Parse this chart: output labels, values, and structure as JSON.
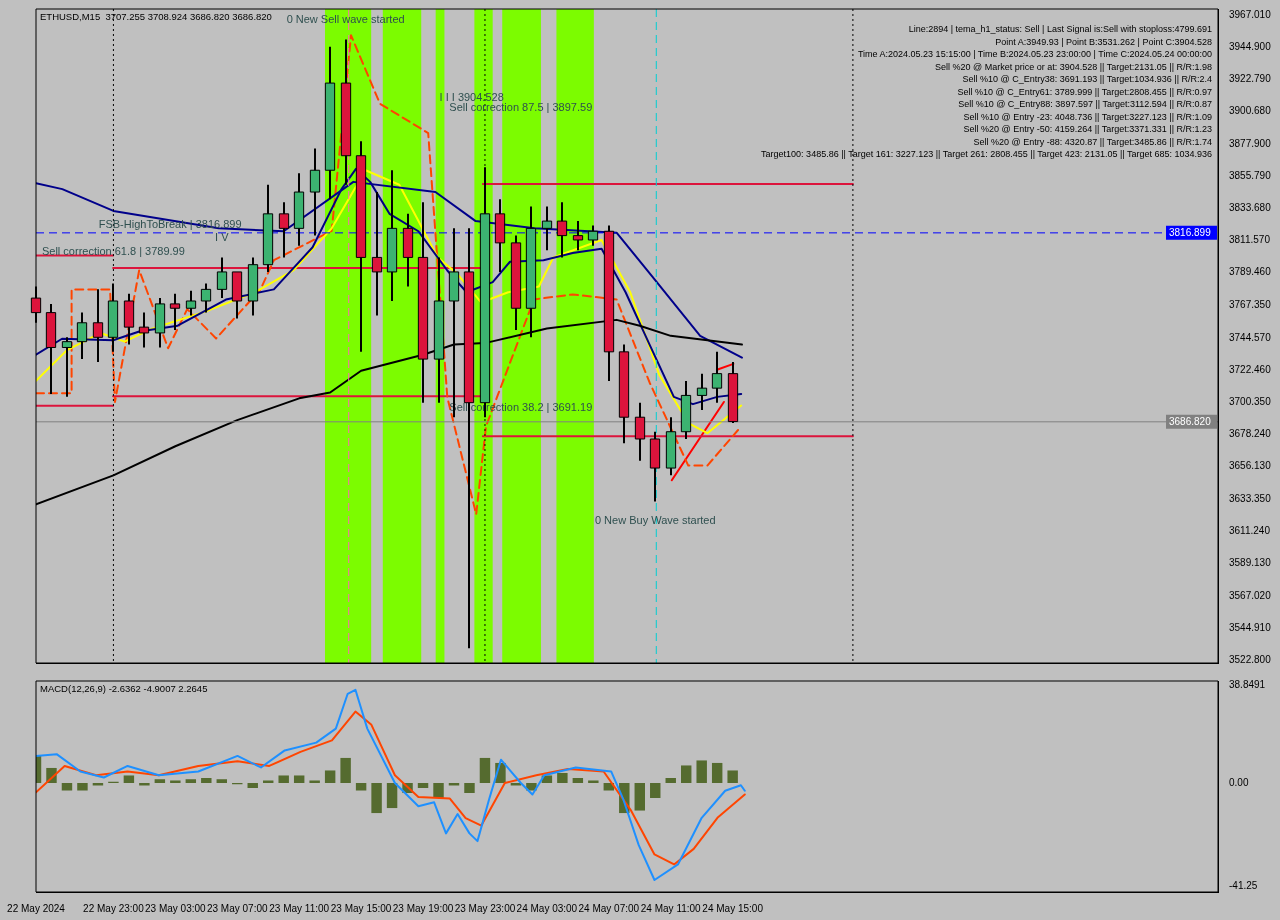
{
  "chart_data": [
    {
      "type": "candlestick",
      "title": "ETHUSD,M15  3707.255 3708.924 3686.820 3686.820",
      "annotations": [
        "Line:2894 | tema_h1_status: Sell | Last Signal is:Sell with stoploss:4799.691",
        "Point A:3949.93 | Point B:3531.262 | Point C:3904.528",
        "Time A:2024.05.23 15:15:00 | Time B:2024.05.23 23:00:00 | Time C:2024.05.24 00:00:00",
        "Sell %20 @ Market price or at: 3904.528 || Target:2131.05 || R/R:1.98",
        "Sell %10 @ C_Entry38: 3691.193 || Target:1034.936 || R/R:2.4",
        "Sell %10 @ C_Entry61: 3789.999 || Target:2808.455 || R/R:0.97",
        "Sell %10 @ C_Entry88: 3897.597 || Target:3112.594 || R/R:0.87",
        "Sell %10 @ Entry -23: 4048.736 || Target:3227.123 || R/R:1.09",
        "Sell %20 @ Entry -50: 4159.264 || Target:3371.331 || R/R:1.23",
        "Sell %20 @ Entry -88: 4320.87 || Target:3485.86 || R/R:1.74",
        "Target100: 3485.86 || Target 161: 3227.123 || Target 261: 2808.455 || Target 423: 2131.05 || Target 685: 1034.936",
        {
          "text": "0 New Sell wave started",
          "x": "2024-05-23T14:00",
          "y": 3950
        },
        {
          "text": "I I I 3904.528",
          "x": "2024-05-23T20:04",
          "y": 3904.528
        },
        {
          "text": "Sell correction 87.5 | 3897.59",
          "x": "2024-05-23T20:42",
          "y": 3897.59
        },
        {
          "text": "Sell correction 61.8 | 3789.99",
          "x": "2024-05-22T23:00",
          "y": 3789.99
        },
        {
          "text": "Sell correction 38.2 | 3691.19",
          "x": "2024-05-23T20:42",
          "y": 3691.19
        },
        {
          "text": "0 New Buy Wave started",
          "x": "2024-05-24T10:00",
          "y": 3632
        },
        {
          "text": "I V",
          "x": "2024-05-23T06:00",
          "y": 3800
        },
        {
          "text": "FSB-HighToBreak | 3816.899",
          "x": "2024-05-22T22:03",
          "y": 3816.899
        }
      ],
      "x": [
        "2024-05-22T18:00",
        "2024-05-22T19:00",
        "2024-05-22T20:00",
        "2024-05-22T21:00",
        "2024-05-22T22:00",
        "2024-05-22T23:00",
        "2024-05-23T00:00",
        "2024-05-23T01:00",
        "2024-05-23T02:00",
        "2024-05-23T03:00",
        "2024-05-23T04:00",
        "2024-05-23T05:00",
        "2024-05-23T06:00",
        "2024-05-23T07:00",
        "2024-05-23T08:00",
        "2024-05-23T09:00",
        "2024-05-23T10:00",
        "2024-05-23T11:00",
        "2024-05-23T12:00",
        "2024-05-23T13:00",
        "2024-05-23T14:00",
        "2024-05-23T15:00",
        "2024-05-23T16:00",
        "2024-05-23T17:00",
        "2024-05-23T18:00",
        "2024-05-23T19:00",
        "2024-05-23T20:00",
        "2024-05-23T21:00",
        "2024-05-23T22:00",
        "2024-05-23T23:00",
        "2024-05-24T00:00",
        "2024-05-24T01:00",
        "2024-05-24T02:00",
        "2024-05-24T03:00",
        "2024-05-24T04:00",
        "2024-05-24T05:00",
        "2024-05-24T06:00",
        "2024-05-24T07:00",
        "2024-05-24T08:00",
        "2024-05-24T09:00",
        "2024-05-24T10:00",
        "2024-05-24T11:00",
        "2024-05-24T12:00",
        "2024-05-24T13:00",
        "2024-05-24T14:00",
        "2024-05-24T15:00"
      ],
      "ohlc": [
        [
          3772,
          3780,
          3755,
          3762
        ],
        [
          3762,
          3768,
          3706,
          3738
        ],
        [
          3738,
          3745,
          3704,
          3742
        ],
        [
          3742,
          3762,
          3730,
          3755
        ],
        [
          3755,
          3778,
          3728,
          3745
        ],
        [
          3745,
          3782,
          3735,
          3770
        ],
        [
          3770,
          3775,
          3740,
          3752
        ],
        [
          3752,
          3762,
          3738,
          3748
        ],
        [
          3748,
          3772,
          3738,
          3768
        ],
        [
          3768,
          3775,
          3750,
          3765
        ],
        [
          3765,
          3777,
          3760,
          3770
        ],
        [
          3770,
          3782,
          3762,
          3778
        ],
        [
          3778,
          3800,
          3772,
          3790
        ],
        [
          3790,
          3790,
          3758,
          3770
        ],
        [
          3770,
          3800,
          3760,
          3795
        ],
        [
          3795,
          3850,
          3790,
          3830
        ],
        [
          3830,
          3838,
          3800,
          3820
        ],
        [
          3820,
          3858,
          3808,
          3845
        ],
        [
          3845,
          3875,
          3815,
          3860
        ],
        [
          3860,
          3945,
          3840,
          3920
        ],
        [
          3920,
          3950,
          3850,
          3870
        ],
        [
          3870,
          3880,
          3735,
          3800
        ],
        [
          3800,
          3845,
          3760,
          3790
        ],
        [
          3790,
          3860,
          3770,
          3820
        ],
        [
          3820,
          3830,
          3780,
          3800
        ],
        [
          3800,
          3838,
          3700,
          3730
        ],
        [
          3730,
          3800,
          3700,
          3770
        ],
        [
          3770,
          3820,
          3690,
          3790
        ],
        [
          3790,
          3820,
          3531,
          3700
        ],
        [
          3700,
          3862,
          3690,
          3830
        ],
        [
          3830,
          3840,
          3790,
          3810
        ],
        [
          3810,
          3815,
          3750,
          3765
        ],
        [
          3765,
          3835,
          3745,
          3820
        ],
        [
          3820,
          3835,
          3805,
          3825
        ],
        [
          3825,
          3838,
          3800,
          3815
        ],
        [
          3815,
          3825,
          3805,
          3812
        ],
        [
          3812,
          3822,
          3808,
          3818
        ],
        [
          3818,
          3822,
          3715,
          3735
        ],
        [
          3735,
          3740,
          3672,
          3690
        ],
        [
          3690,
          3700,
          3660,
          3675
        ],
        [
          3675,
          3680,
          3632,
          3655
        ],
        [
          3655,
          3690,
          3650,
          3680
        ],
        [
          3680,
          3715,
          3675,
          3705
        ],
        [
          3705,
          3720,
          3695,
          3710
        ],
        [
          3710,
          3735,
          3700,
          3720
        ],
        [
          3720,
          3728,
          3686,
          3687
        ]
      ],
      "series": [
        {
          "type": "line",
          "color": "#000000",
          "x": [
            "2024-05-22T18:00",
            "2024-05-22T23:00",
            "2024-05-23T03:00",
            "2024-05-23T07:00",
            "2024-05-23T11:00",
            "2024-05-23T13:00",
            "2024-05-23T15:00",
            "2024-05-23T19:00",
            "2024-05-23T21:00",
            "2024-05-23T23:00",
            "2024-05-24T03:00",
            "2024-05-24T07:30",
            "2024-05-24T09:00",
            "2024-05-24T11:00",
            "2024-05-24T15:36"
          ],
          "values": [
            3630,
            3650,
            3670,
            3688,
            3703,
            3707,
            3722,
            3733,
            3740,
            3741,
            3751,
            3757,
            3753,
            3746,
            3740
          ]
        },
        {
          "type": "line",
          "color": "#00008b",
          "x": [
            "2024-05-22T18:00",
            "2024-05-22T19:42",
            "2024-05-22T23:00",
            "2024-05-23T05:48",
            "2024-05-23T10:00",
            "2024-05-23T14:30",
            "2024-05-23T19:48",
            "2024-05-23T22:24",
            "2024-05-24T02:12",
            "2024-05-24T07:30",
            "2024-05-24T09:48",
            "2024-05-24T12:54",
            "2024-05-24T15:36"
          ],
          "values": [
            3851,
            3847,
            3832,
            3820,
            3818,
            3852,
            3845,
            3825,
            3820,
            3817,
            3787,
            3746,
            3731
          ]
        },
        {
          "type": "line",
          "color": "#000080",
          "x": [
            "2024-05-22T18:00",
            "2024-05-22T19:41",
            "2024-05-22T22:59",
            "2024-05-23T00:40",
            "2024-05-23T03:09",
            "2024-05-23T06:16",
            "2024-05-23T09:22",
            "2024-05-23T11:52",
            "2024-05-23T13:44",
            "2024-05-23T14:40",
            "2024-05-23T15:35",
            "2024-05-23T16:50",
            "2024-05-23T18:42",
            "2024-05-23T20:34",
            "2024-05-23T21:49",
            "2024-05-23T23:30",
            "2024-05-24T00:37",
            "2024-05-24T02:47",
            "2024-05-24T04:40",
            "2024-05-24T06:32",
            "2024-05-24T08:05",
            "2024-05-24T09:38",
            "2024-05-24T11:12",
            "2024-05-24T12:26",
            "2024-05-24T14:00",
            "2024-05-24T15:33"
          ],
          "values": [
            3733,
            3744,
            3743,
            3749,
            3753,
            3771,
            3778,
            3807,
            3847,
            3861,
            3852,
            3830,
            3818,
            3791,
            3776,
            3783,
            3797,
            3798,
            3803,
            3806,
            3776,
            3740,
            3704,
            3699,
            3704,
            3706
          ]
        },
        {
          "type": "line",
          "color": "#ffff00",
          "x": [
            "2024-05-22T18:00",
            "2024-05-22T19:59",
            "2024-05-22T22:10",
            "2024-05-22T23:43",
            "2024-05-23T01:30",
            "2024-05-23T05:01",
            "2024-05-23T08:08",
            "2024-05-23T10:37",
            "2024-05-23T13:06",
            "2024-05-23T15:17",
            "2024-05-23T17:28",
            "2024-05-23T19:57",
            "2024-05-23T21:11",
            "2024-05-23T22:45",
            "2024-05-24T00:30",
            "2024-05-24T02:29",
            "2024-05-24T03:25",
            "2024-05-24T06:32",
            "2024-05-24T08:23",
            "2024-05-24T10:16",
            "2024-05-24T12:08",
            "2024-05-24T13:22",
            "2024-05-24T15:33"
          ],
          "values": [
            3715,
            3736,
            3748,
            3742,
            3751,
            3763,
            3776,
            3791,
            3820,
            3860,
            3850,
            3800,
            3789,
            3769,
            3776,
            3780,
            3800,
            3812,
            3776,
            3719,
            3686,
            3679,
            3698
          ]
        },
        {
          "type": "line",
          "color": "#ff4500",
          "line_style": "dashed",
          "x": [
            "2024-05-22T18:00",
            "2024-05-22T20:18",
            "2024-05-22T20:18",
            "2024-05-22T22:47",
            "2024-05-22T23:06",
            "2024-05-23T00:40",
            "2024-05-23T02:32",
            "2024-05-23T03:46",
            "2024-05-23T05:38",
            "2024-05-23T08:30",
            "2024-05-23T09:22",
            "2024-05-23T13:06",
            "2024-05-23T14:21",
            "2024-05-23T16:13",
            "2024-05-23T19:20",
            "2024-05-23T20:34",
            "2024-05-23T22:26",
            "2024-05-23T23:04",
            "2024-05-24T02:10",
            "2024-05-24T04:40",
            "2024-05-24T07:30",
            "2024-05-24T09:38",
            "2024-05-24T12:08",
            "2024-05-24T13:22",
            "2024-05-24T15:33"
          ],
          "values": [
            3706.5,
            3706.5,
            3777.9,
            3777.9,
            3700.5,
            3791.3,
            3737.5,
            3764.4,
            3744.2,
            3777.9,
            3798.1,
            3818.3,
            3952.9,
            3905.8,
            3885.6,
            3703.8,
            3623.1,
            3683.7,
            3771.1,
            3774.5,
            3771.1,
            3713.9,
            3656.7,
            3656.7,
            3683.7
          ]
        },
        {
          "type": "line",
          "color": "#dc143c",
          "x": [
            "2024-05-22T18:00",
            "2024-05-22T22:59"
          ],
          "values": [
            3801.4,
            3801.4
          ]
        },
        {
          "type": "line",
          "color": "#dc143c",
          "x": [
            "2024-05-22T22:59",
            "2024-05-23T22:52"
          ],
          "values": [
            3792.7,
            3792.7
          ]
        },
        {
          "type": "line",
          "color": "#dc143c",
          "x": [
            "2024-05-22T22:59",
            "2024-05-23T22:52"
          ],
          "values": [
            3704.5,
            3704.5
          ]
        },
        {
          "type": "line",
          "color": "#dc143c",
          "x": [
            "2024-05-22T18:00",
            "2024-05-22T22:59"
          ],
          "values": [
            3697.8,
            3697.8
          ]
        },
        {
          "type": "line",
          "color": "#dc143c",
          "x": [
            "2024-05-23T22:52",
            "2024-05-24T22:46"
          ],
          "values": [
            3850.6,
            3850.6
          ]
        },
        {
          "type": "line",
          "color": "#dc143c",
          "x": [
            "2024-05-23T22:52",
            "2024-05-24T22:46"
          ],
          "values": [
            3676.9,
            3676.9
          ]
        },
        {
          "type": "line",
          "color": "#ff0000",
          "x": [
            "2024-05-24T11:04",
            "2024-05-24T14:26"
          ],
          "values": [
            3646.6,
            3700.5
          ]
        },
        {
          "type": "line",
          "color": "#ff0000",
          "x": [
            "2024-05-24T13:59",
            "2024-05-24T15:03"
          ],
          "values": [
            3722.7,
            3726.7
          ]
        }
      ],
      "ref_lines": [
        {
          "axis": "y",
          "value": 3816.899,
          "label": "3816.899",
          "color": "#0000ff",
          "line_style": "dashed"
        },
        {
          "axis": "y",
          "value": 3686.82,
          "label": "3686.820",
          "color": "#808080"
        },
        {
          "axis": "x",
          "value": "2024-05-22T23:00",
          "color": "#000000",
          "line_style": "dotted"
        },
        {
          "axis": "x",
          "value": "2024-05-23T23:00",
          "color": "#000000",
          "line_style": "dotted"
        },
        {
          "axis": "x",
          "value": "2024-05-24T22:46",
          "color": "#000000",
          "line_style": "dotted"
        },
        {
          "axis": "x",
          "value": "2024-05-23T14:12",
          "color": "#ff69b4",
          "line_style": "dashed"
        },
        {
          "axis": "x",
          "value": "2024-05-24T10:04",
          "color": "#00ced1",
          "line_style": "dashed"
        }
      ],
      "bands": [
        {
          "axis": "x",
          "from": "2024-05-23T12:40",
          "to": "2024-05-23T15:39",
          "color": "#7cfc00"
        },
        {
          "axis": "x",
          "from": "2024-05-23T16:24",
          "to": "2024-05-23T18:53",
          "color": "#7cfc00"
        },
        {
          "axis": "x",
          "from": "2024-05-23T19:49",
          "to": "2024-05-23T20:23",
          "color": "#7cfc00"
        },
        {
          "axis": "x",
          "from": "2024-05-23T22:19",
          "to": "2024-05-23T23:30",
          "color": "#7cfc00"
        },
        {
          "axis": "x",
          "from": "2024-05-24T00:07",
          "to": "2024-05-24T02:37",
          "color": "#7cfc00"
        },
        {
          "axis": "x",
          "from": "2024-05-24T03:37",
          "to": "2024-05-24T06:02",
          "color": "#7cfc00"
        }
      ],
      "xlim": [
        "2024-05-22T18:00",
        "2024-05-25T22:21"
      ],
      "ylim": [
        3520.8,
        3971.0
      ],
      "yticks": [
        {
          "value": 3967.01,
          "label": "3967.010"
        },
        {
          "value": 3944.9,
          "label": "3944.900"
        },
        {
          "value": 3922.79,
          "label": "3922.790"
        },
        {
          "value": 3900.68,
          "label": "3900.680"
        },
        {
          "value": 3877.9,
          "label": "3877.900"
        },
        {
          "value": 3855.79,
          "label": "3855.790"
        },
        {
          "value": 3833.68,
          "label": "3833.680"
        },
        {
          "value": 3811.57,
          "label": "3811.570"
        },
        {
          "value": 3789.46,
          "label": "3789.460"
        },
        {
          "value": 3767.35,
          "label": "3767.350"
        },
        {
          "value": 3744.57,
          "label": "3744.570"
        },
        {
          "value": 3722.46,
          "label": "3722.460"
        },
        {
          "value": 3700.35,
          "label": "3700.350"
        },
        {
          "value": 3678.24,
          "label": "3678.240"
        },
        {
          "value": 3656.13,
          "label": "3656.130"
        },
        {
          "value": 3633.35,
          "label": "3633.350"
        },
        {
          "value": 3611.24,
          "label": "3611.240"
        },
        {
          "value": 3589.13,
          "label": "3589.130"
        },
        {
          "value": 3567.02,
          "label": "3567.020"
        },
        {
          "value": 3544.91,
          "label": "3544.910"
        },
        {
          "value": 3522.8,
          "label": "3522.800"
        }
      ],
      "tick_labels": "y"
    },
    {
      "type": "bar",
      "title": "MACD(12,26,9) -2.6362 -4.9007 2.2645",
      "x": [
        "2024-05-22T18:00",
        "2024-05-22T19:00",
        "2024-05-22T20:00",
        "2024-05-22T21:00",
        "2024-05-22T22:00",
        "2024-05-22T23:00",
        "2024-05-23T00:00",
        "2024-05-23T01:00",
        "2024-05-23T02:00",
        "2024-05-23T03:00",
        "2024-05-23T04:00",
        "2024-05-23T05:00",
        "2024-05-23T06:00",
        "2024-05-23T07:00",
        "2024-05-23T08:00",
        "2024-05-23T09:00",
        "2024-05-23T10:00",
        "2024-05-23T11:00",
        "2024-05-23T12:00",
        "2024-05-23T13:00",
        "2024-05-23T14:00",
        "2024-05-23T15:00",
        "2024-05-23T16:00",
        "2024-05-23T17:00",
        "2024-05-23T18:00",
        "2024-05-23T19:00",
        "2024-05-23T20:00",
        "2024-05-23T21:00",
        "2024-05-23T22:00",
        "2024-05-23T23:00",
        "2024-05-24T00:00",
        "2024-05-24T01:00",
        "2024-05-24T02:00",
        "2024-05-24T03:00",
        "2024-05-24T04:00",
        "2024-05-24T05:00",
        "2024-05-24T06:00",
        "2024-05-24T07:00",
        "2024-05-24T08:00",
        "2024-05-24T09:00",
        "2024-05-24T10:00",
        "2024-05-24T11:00",
        "2024-05-24T12:00",
        "2024-05-24T13:00",
        "2024-05-24T14:00",
        "2024-05-24T15:00"
      ],
      "series": [
        {
          "color": "#556b2f",
          "values": [
            10.8,
            6,
            -3,
            -3,
            -1,
            0.5,
            3,
            -1,
            1.5,
            1,
            1.5,
            2,
            1.5,
            -0.5,
            -2,
            1,
            3,
            3,
            1,
            5,
            10,
            -3,
            -12,
            -10,
            -4,
            -2,
            -6,
            -1,
            -4,
            10,
            8,
            -1,
            -3,
            3,
            4,
            2,
            1,
            -3,
            -12,
            -11,
            -6,
            2,
            7,
            9,
            8,
            5
          ]
        },
        {
          "type": "line",
          "color": "#1e90ff",
          "x": [
            "2024-05-22T18:00",
            "2024-05-22T19:20",
            "2024-05-22T20:52",
            "2024-05-22T22:23",
            "2024-05-22T23:55",
            "2024-05-23T01:56",
            "2024-05-23T04:29",
            "2024-05-23T07:01",
            "2024-05-23T08:32",
            "2024-05-23T10:04",
            "2024-05-23T12:06",
            "2024-05-23T13:22",
            "2024-05-23T14:08",
            "2024-05-23T14:38",
            "2024-05-23T15:24",
            "2024-05-23T17:11",
            "2024-05-23T18:42",
            "2024-05-23T19:43",
            "2024-05-23T20:29",
            "2024-05-23T21:14",
            "2024-05-23T22:00",
            "2024-05-23T22:31",
            "2024-05-23T23:17",
            "2024-05-24T00:02",
            "2024-05-24T01:19",
            "2024-05-24T02:04",
            "2024-05-24T02:50",
            "2024-05-24T04:52",
            "2024-05-24T07:09",
            "2024-05-24T07:55",
            "2024-05-24T08:56",
            "2024-05-24T09:57",
            "2024-05-24T11:28",
            "2024-05-24T13:00",
            "2024-05-24T14:31",
            "2024-05-24T15:32",
            "2024-05-24T15:47"
          ],
          "values": [
            10.8,
            11.5,
            4.6,
            2.2,
            6.8,
            3.1,
            4.6,
            10.8,
            6.2,
            13,
            16.1,
            21.7,
            35.6,
            37.2,
            21.7,
            0,
            -9.3,
            -7.7,
            -20.1,
            -12.4,
            -20.1,
            -23.2,
            -6.2,
            9.3,
            0,
            -4.6,
            3.1,
            6.2,
            4.6,
            -6.2,
            -24.8,
            -38.7,
            -32.5,
            -13.9,
            -3.1,
            -0.9,
            -3.1
          ]
        },
        {
          "type": "line",
          "color": "#ff4500",
          "x": [
            "2024-05-22T18:00",
            "2024-05-22T19:51",
            "2024-05-22T21:53",
            "2024-05-22T23:55",
            "2024-05-23T01:56",
            "2024-05-23T04:29",
            "2024-05-23T07:01",
            "2024-05-23T09:04",
            "2024-05-23T11:05",
            "2024-05-23T13:07",
            "2024-05-23T14:38",
            "2024-05-23T15:40",
            "2024-05-23T17:11",
            "2024-05-23T18:42",
            "2024-05-23T20:44",
            "2024-05-23T21:45",
            "2024-05-23T22:46",
            "2024-05-24T00:17",
            "2024-05-24T02:19",
            "2024-05-24T04:22",
            "2024-05-24T06:40",
            "2024-05-24T08:25",
            "2024-05-24T09:57",
            "2024-05-24T11:13",
            "2024-05-24T12:29",
            "2024-05-24T14:01",
            "2024-05-24T15:47"
          ],
          "values": [
            -3.7,
            6.8,
            3.1,
            4.6,
            3.1,
            6.8,
            8.7,
            6.8,
            12.4,
            17,
            28.5,
            23.2,
            3.1,
            -5.6,
            -6.2,
            -14,
            -17,
            0,
            3.1,
            5.6,
            4.6,
            -10.8,
            -28.5,
            -32.5,
            -26.3,
            -13.9,
            -4.6
          ]
        }
      ],
      "xlim": [
        "2024-05-22T18:00",
        "2024-05-25T22:21"
      ],
      "ylim": [
        -43.5,
        40.7
      ],
      "xticks": [
        {
          "value": "2024-05-22T18:00",
          "label": "22 May 2024"
        },
        {
          "value": "2024-05-22T23:00",
          "label": "22 May 23:00"
        },
        {
          "value": "2024-05-23T03:00",
          "label": "23 May 03:00"
        },
        {
          "value": "2024-05-23T07:00",
          "label": "23 May 07:00"
        },
        {
          "value": "2024-05-23T11:00",
          "label": "23 May 11:00"
        },
        {
          "value": "2024-05-23T15:00",
          "label": "23 May 15:00"
        },
        {
          "value": "2024-05-23T19:00",
          "label": "23 May 19:00"
        },
        {
          "value": "2024-05-23T23:00",
          "label": "23 May 23:00"
        },
        {
          "value": "2024-05-24T03:00",
          "label": "24 May 03:00"
        },
        {
          "value": "2024-05-24T07:00",
          "label": "24 May 07:00"
        },
        {
          "value": "2024-05-24T11:00",
          "label": "24 May 11:00"
        },
        {
          "value": "2024-05-24T15:00",
          "label": "24 May 15:00"
        }
      ],
      "yticks": [
        38.8491,
        {
          "value": 0,
          "label": "0.00"
        },
        -41.25
      ]
    }
  ]
}
